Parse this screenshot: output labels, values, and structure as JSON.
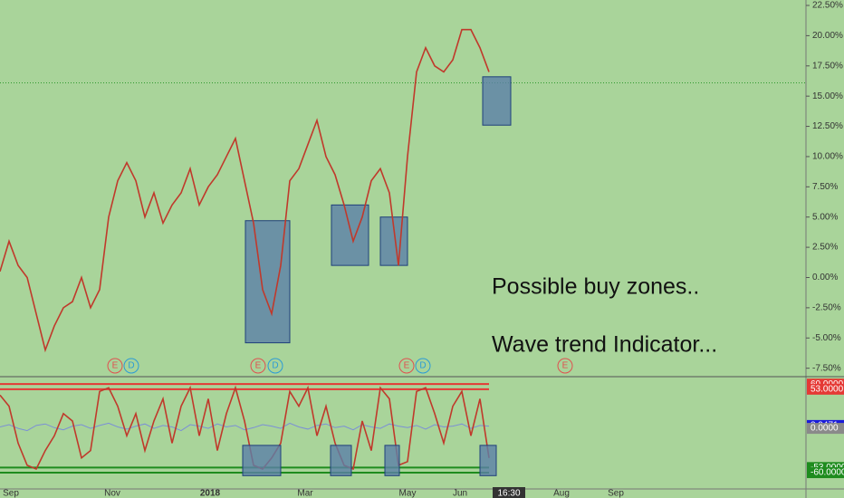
{
  "chart_data": {
    "type": "line",
    "price": {
      "color": "#c0392b",
      "values": [
        0.5,
        3,
        1,
        0,
        -3,
        -6,
        -4,
        -2.5,
        -2,
        0,
        -2.5,
        -1,
        5,
        8,
        9.5,
        8,
        5,
        7,
        4.5,
        6,
        7,
        9,
        6,
        7.5,
        8.5,
        10,
        11.5,
        8,
        4.5,
        -1,
        -3,
        1,
        8,
        9,
        11,
        13,
        10,
        8.5,
        6,
        3,
        5,
        8,
        9,
        7,
        1,
        10,
        17,
        19,
        17.5,
        17,
        18,
        20.5,
        20.5,
        19,
        17
      ]
    },
    "ylim": [
      -8.2,
      22.95
    ],
    "yticks": [
      {
        "value": 22.5,
        "label": "22.50%"
      },
      {
        "value": 20,
        "label": "20.00%"
      },
      {
        "value": 17.5,
        "label": "17.50%"
      },
      {
        "value": 15,
        "label": "15.00%"
      },
      {
        "value": 12.5,
        "label": "12.50%"
      },
      {
        "value": 10,
        "label": "10.00%"
      },
      {
        "value": 7.5,
        "label": "7.50%"
      },
      {
        "value": 5,
        "label": "5.00%"
      },
      {
        "value": 2.5,
        "label": "2.50%"
      },
      {
        "value": 0,
        "label": "0.00%"
      },
      {
        "value": -2.5,
        "label": "-2.50%"
      },
      {
        "value": -5,
        "label": "-5.00%"
      },
      {
        "value": -7.5,
        "label": "-7.50%"
      }
    ],
    "reference_line": 16.1,
    "zones": [
      {
        "top": 4.7,
        "bottom": -5.4
      },
      {
        "top": 6,
        "bottom": 1
      },
      {
        "top": 5,
        "bottom": 1
      },
      {
        "top": 16.6,
        "bottom": 12.6
      }
    ],
    "annotations": [
      "Possible buy zones..",
      "Wave trend Indicator..."
    ],
    "events": [
      "E",
      "D",
      "E",
      "D",
      "E",
      "D",
      "E"
    ],
    "x_labels": [
      "Sep",
      "Nov",
      "2018",
      "Mar",
      "May",
      "Jun",
      "16:30",
      "Aug",
      "Sep"
    ],
    "oscillator": {
      "color": "#c0392b",
      "values": [
        45,
        30,
        -20,
        -50,
        -55,
        -30,
        -10,
        20,
        10,
        -40,
        -30,
        50,
        55,
        30,
        -10,
        20,
        -30,
        10,
        40,
        -20,
        30,
        55,
        -10,
        40,
        -30,
        20,
        55,
        10,
        -50,
        -55,
        -40,
        -20,
        50,
        30,
        55,
        -10,
        30,
        -20,
        -50,
        -55,
        10,
        -30,
        55,
        40,
        -50,
        -45,
        50,
        55,
        20,
        -20,
        30,
        50,
        -10,
        40,
        -40
      ]
    },
    "signal": {
      "color": "#7b8fd6",
      "values": [
        2,
        5,
        0,
        -3,
        4,
        6,
        1,
        -2,
        3,
        5,
        0,
        4,
        7,
        2,
        -1,
        3,
        6,
        0,
        4,
        2,
        -3,
        5,
        3,
        0,
        6,
        2,
        4,
        -2,
        1,
        5,
        3,
        0,
        7,
        2,
        -1,
        4,
        6,
        1,
        3,
        -2,
        5,
        2,
        0,
        6,
        3,
        1,
        4,
        -1,
        5,
        2,
        3,
        6,
        0,
        4,
        3
      ]
    },
    "y2lim": [
      -82,
      70
    ],
    "y2ticks": [
      {
        "value": 60,
        "label": "60.0000",
        "color": "#e53935"
      },
      {
        "value": 53,
        "label": "53.0000",
        "color": "#e53935"
      },
      {
        "value": 3.9471,
        "label": "3.9471",
        "color": "#1a1adb"
      },
      {
        "value": 0,
        "label": "0.0000",
        "color": "#8a8a8a"
      },
      {
        "value": -53,
        "label": "-53.0000",
        "color": "#1e8c1e"
      },
      {
        "value": -60,
        "label": "-60.0000",
        "color": "#1e8c1e"
      }
    ],
    "indicator_zones": [
      {
        "top": -23,
        "bottom": -64
      },
      {
        "top": -23,
        "bottom": -64
      },
      {
        "top": -23,
        "bottom": -64
      },
      {
        "top": -23,
        "bottom": -64
      }
    ]
  }
}
